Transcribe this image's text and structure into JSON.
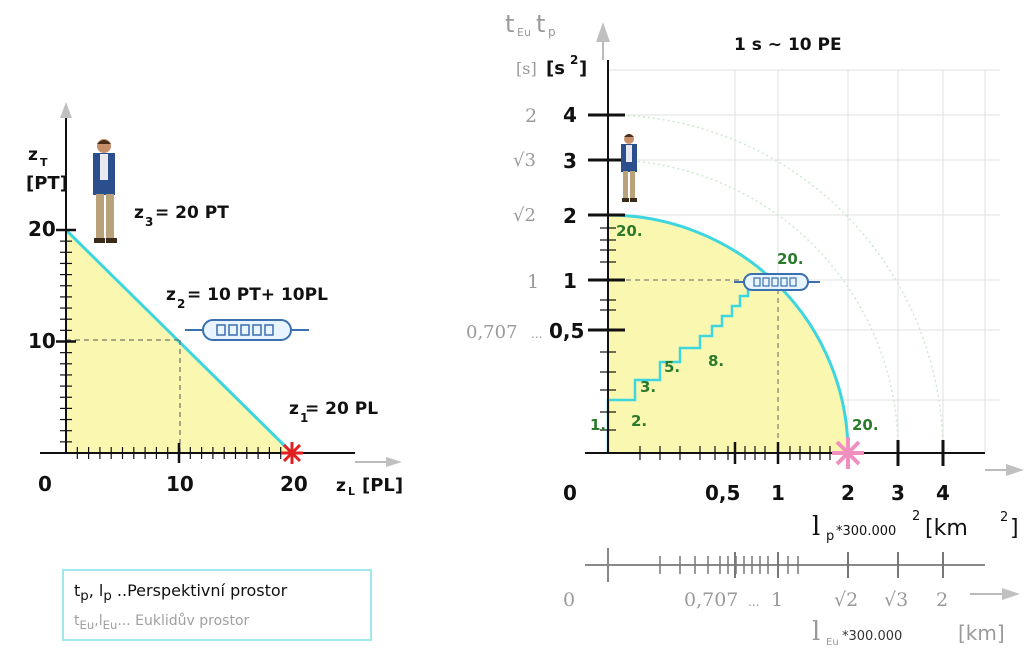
{
  "left": {
    "axis_y_label": "z",
    "axis_y_sub": "T",
    "axis_y_unit": "[PT]",
    "axis_x_label": "z",
    "axis_x_sub": "L",
    "axis_x_unit": "[PL]",
    "tick_y_20": "20",
    "tick_y_10": "10",
    "tick_x_0": "0",
    "tick_x_10": "10",
    "tick_x_20": "20",
    "z3": "z",
    "z3_sub": "3",
    "z3_val": "= 20 PT",
    "z2": "z",
    "z2_sub": "2",
    "z2_val": "= 10 PT+ 10PL",
    "z1": "z",
    "z1_sub": "1",
    "z1_val": " = 20 PL"
  },
  "right": {
    "scale_note": "1 s ~ 10 PE",
    "axis_y_t": "t",
    "axis_y_sub_eu": "Eu",
    "axis_y_t2": "t",
    "axis_y_sub_p": "p",
    "unit_s": "[s]",
    "unit_s2": "[s",
    "unit_s2_sup": "2",
    "unit_s2_end": "]",
    "y4": "4",
    "y4_eu": "2",
    "y3": "3",
    "y3_eu": "√3",
    "y2": "2",
    "y2_eu": "√2",
    "y1": "1",
    "y1_eu": "1",
    "y05": "0,5",
    "y05_eu": "0,707",
    "ellipsis": "...",
    "x0": "0",
    "x05": "0,5",
    "x1": "1",
    "x2": "2",
    "x3": "3",
    "x4": "4",
    "lp": "l",
    "lp_sub": "p",
    "lp_mult": "*300.000",
    "lp_sup": "2",
    "lp_unit": "[km",
    "lp_unit_sup": "2",
    "lp_unit_end": "]",
    "eu_x0": "0",
    "eu_x0707": "0,707",
    "eu_x1": "1",
    "eu_xr2": "√2",
    "eu_xr3": "√3",
    "eu_x2": "2",
    "leu": "l",
    "leu_sub": "Eu",
    "leu_mult": "*300.000",
    "leu_unit": "[km]",
    "step_labels": [
      "1.",
      "2.",
      "3.",
      "5.",
      "8."
    ],
    "label_20_top": "20.",
    "label_20_mid": "20.",
    "label_20_right": "20."
  },
  "legend": {
    "line1_t": "t",
    "line1_tsub": "p",
    "line1_comma": ", ",
    "line1_l": "l",
    "line1_lsub": "p",
    "line1_text": " ..Perspektivní prostor",
    "line2_t": "t",
    "line2_tsub": "Eu",
    "line2_comma": ",",
    "line2_l": "l",
    "line2_lsub": "Eu",
    "line2_text": "... Euklidův prostor"
  },
  "colors": {
    "fill": "#faf7b0",
    "curve": "#3dd6e0",
    "axis": "#111111",
    "gray": "#a0a0a0",
    "star_left": "#e02020",
    "star_right": "#f090c0"
  }
}
